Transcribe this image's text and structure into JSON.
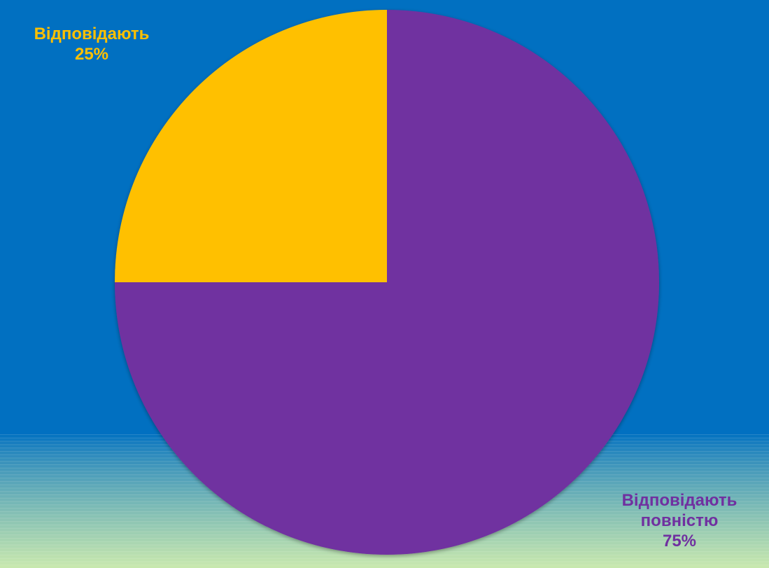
{
  "colors": {
    "background": "#0170c1",
    "band_light": "#c9e9ae",
    "slice_a": "#ffc000",
    "slice_b": "#7030a0"
  },
  "chart_data": {
    "type": "pie",
    "title": "",
    "slices": [
      {
        "label": "Відповідають",
        "value": 25,
        "value_label": "25%",
        "color": "#ffc000"
      },
      {
        "label": "Відповідають повністю",
        "value": 75,
        "value_label": "75%",
        "color": "#7030a0"
      }
    ],
    "start_angle_deg": 270,
    "direction": "counterclockwise",
    "legend": "none"
  },
  "labels": {
    "a": {
      "line1": "Відповідають",
      "line2": "25%"
    },
    "b": {
      "line1": "Відповідають",
      "line2": "повністю",
      "line3": "75%"
    }
  }
}
